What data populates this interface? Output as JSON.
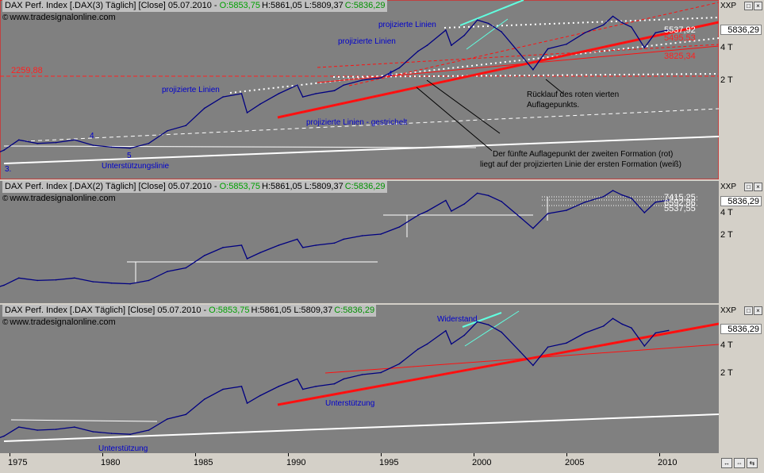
{
  "panels": [
    {
      "header": {
        "title": "DAX Perf. Index [.DAX(3)  Täglich] [Close] 05.07.2010 -",
        "open": "O:5853,75",
        "hl": "H:5861,05 L:5809,37",
        "close": "C:5836,29"
      },
      "source": "www.tradesignalonline.com",
      "price_box": "5836,29",
      "ticks": [
        "4 T",
        "2 T"
      ],
      "price_labels": [
        {
          "text": "2259,88",
          "color": "#ff2020"
        },
        {
          "text": "5537,92",
          "color": "#ffffff"
        },
        {
          "text": "5495,53",
          "color": "#ff2020"
        },
        {
          "text": "3825,34",
          "color": "#ff2020"
        }
      ],
      "annotations": [
        {
          "text": "projizierte Linien",
          "color": "#0000cc"
        },
        {
          "text": "projizierte Linien",
          "color": "#0000cc"
        },
        {
          "text": "projizierte Linien",
          "color": "#0000cc"
        },
        {
          "text": "projizierte Linien - gestrichelt",
          "color": "#0000cc"
        },
        {
          "text": "Unterstützungslinie",
          "color": "#0000cc"
        },
        {
          "text": "Rücklauf des roten vierten",
          "color": "#000000"
        },
        {
          "text": "Auflagepunkts.",
          "color": "#000000"
        },
        {
          "text": "Der fünfte Auflagepunkt der zweiten Formation (rot)",
          "color": "#000000"
        },
        {
          "text": "liegt auf der projizierten Linie der ersten Formation (weiß)",
          "color": "#000000"
        },
        {
          "text": "3.",
          "color": "#0000cc"
        },
        {
          "text": "4",
          "color": "#0000cc"
        },
        {
          "text": "5",
          "color": "#0000cc"
        },
        {
          "text": "4",
          "color": "#0000cc"
        }
      ]
    },
    {
      "header": {
        "title": "DAX Perf. Index [.DAX(2)  Täglich] [Close] 05.07.2010 -",
        "open": "O:5853,75",
        "hl": "H:5861,05 L:5809,37",
        "close": "C:5836,29"
      },
      "source": "www.tradesignalonline.com",
      "price_box": "5836,29",
      "ticks": [
        "4 T",
        "2 T"
      ],
      "price_labels": [
        {
          "text": "7415,25",
          "color": "#ffffff"
        },
        {
          "text": "6592,86",
          "color": "#ffffff"
        },
        {
          "text": "5537,55",
          "color": "#ffffff"
        }
      ],
      "annotations": []
    },
    {
      "header": {
        "title": "DAX Perf. Index [.DAX  Täglich] [Close] 05.07.2010 -",
        "open": "O:5853,75",
        "hl": "H:5861,05 L:5809,37",
        "close": "C:5836,29"
      },
      "source": "www.tradesignalonline.com",
      "price_box": "5836,29",
      "ticks": [
        "4 T",
        "2 T"
      ],
      "price_labels": [],
      "annotations": [
        {
          "text": "Widerstand",
          "color": "#0000cc"
        },
        {
          "text": "Unterstützung",
          "color": "#0000cc"
        },
        {
          "text": "Unterstützung",
          "color": "#0000cc"
        }
      ]
    }
  ],
  "right_axis_label": "XXP",
  "buttons": [
    "□",
    "×"
  ],
  "nav_buttons": [
    "↔",
    "⇔",
    "⇆"
  ],
  "chart_data": {
    "type": "line",
    "title": "DAX Perf. Index",
    "xlabel": "",
    "ylabel": "",
    "x_tick_labels": [
      "1975",
      "1980",
      "1985",
      "1990",
      "1995",
      "2000",
      "2005",
      "2010"
    ],
    "y_scale": "log",
    "y_ticks": [
      "2 T",
      "4 T"
    ],
    "series": [
      {
        "name": "DAX Perf. Index",
        "x": [
          1974.0,
          1974.7,
          1975.5,
          1976.5,
          1977.5,
          1978.5,
          1979.5,
          1980.5,
          1981.5,
          1982.5,
          1983.5,
          1984.5,
          1985.5,
          1986.5,
          1987.5,
          1987.8,
          1988.5,
          1989.5,
          1990.5,
          1990.8,
          1991.5,
          1992.5,
          1993.0,
          1994.0,
          1995.0,
          1996.0,
          1997.0,
          1997.5,
          1998.5,
          1998.8,
          1999.5,
          2000.2,
          2000.8,
          2001.5,
          2002.5,
          2003.2,
          2004.0,
          2005.0,
          2006.0,
          2007.0,
          2007.5,
          2008.0,
          2008.5,
          2009.2,
          2009.8,
          2010.5
        ],
        "values": [
          400,
          450,
          560,
          520,
          530,
          560,
          500,
          480,
          470,
          520,
          680,
          760,
          1100,
          1400,
          1500,
          1000,
          1200,
          1500,
          1800,
          1400,
          1500,
          1600,
          1800,
          2000,
          2100,
          2600,
          3700,
          4200,
          5800,
          4200,
          5200,
          7200,
          6700,
          5600,
          3500,
          2500,
          3900,
          4300,
          5500,
          6500,
          7800,
          6800,
          6200,
          4000,
          5500,
          5836
        ]
      }
    ],
    "horizontal_levels": [
      2259.88,
      3825.34,
      5495.53,
      5537.92,
      5537.55,
      6592.86,
      7415.25
    ]
  }
}
